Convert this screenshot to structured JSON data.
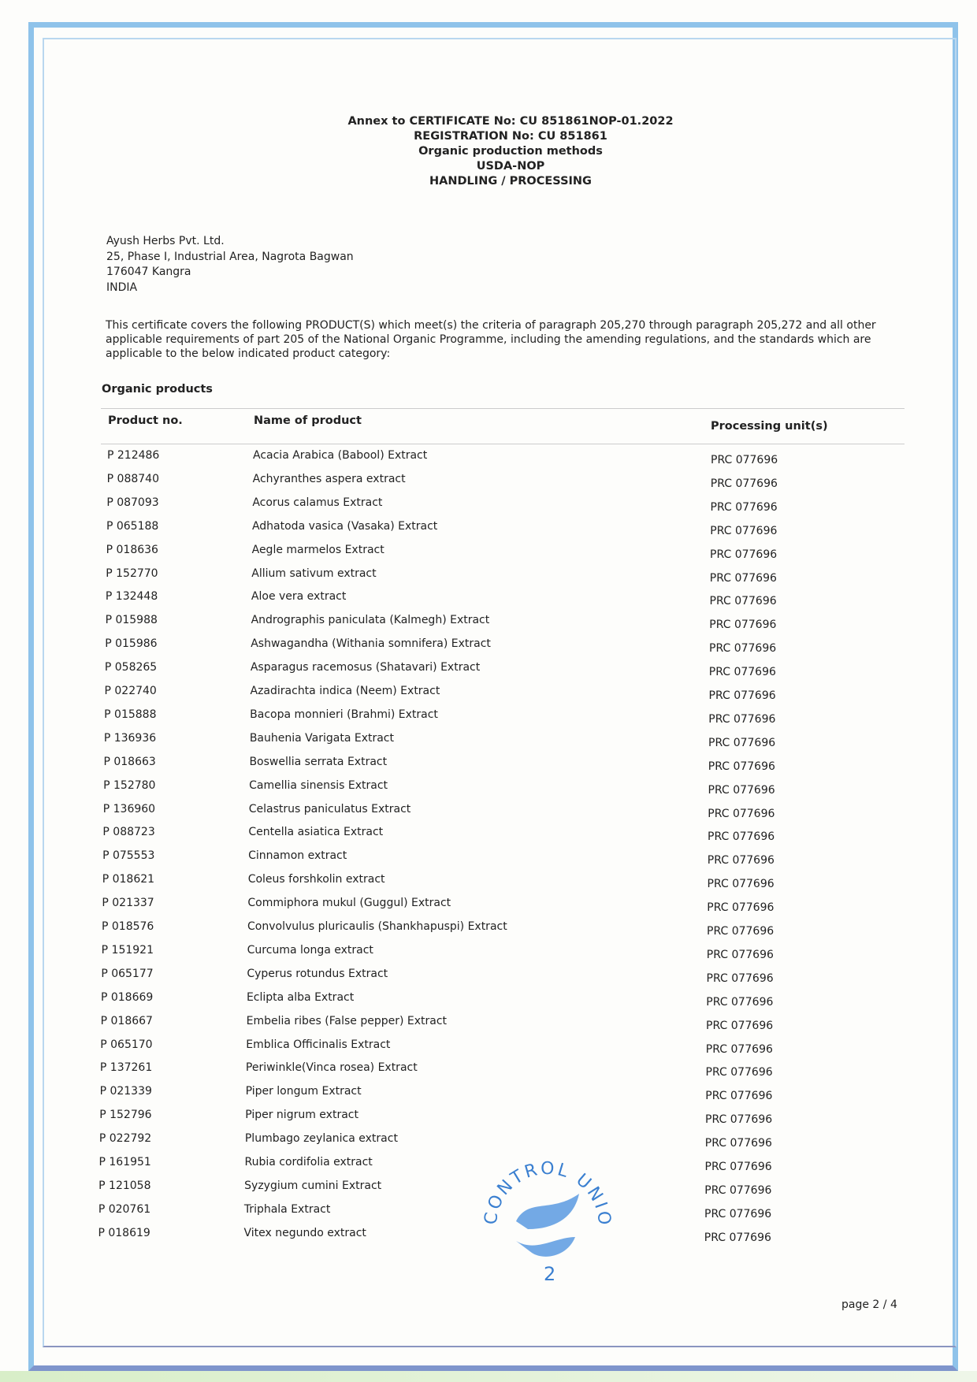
{
  "header": {
    "lines": [
      "Annex to CERTIFICATE No: CU 851861NOP-01.2022",
      "REGISTRATION No: CU 851861",
      "Organic production methods",
      "USDA-NOP",
      "HANDLING / PROCESSING"
    ]
  },
  "address": [
    "Ayush Herbs Pvt. Ltd.",
    "25, Phase I, Industrial Area, Nagrota Bagwan",
    "176047 Kangra",
    "INDIA"
  ],
  "intro": "This certificate covers the following PRODUCT(S) which meet(s) the criteria of paragraph 205,270 through paragraph 205,272 and all other applicable requirements of part 205 of the National Organic Programme, including the amending regulations, and the standards which are applicable to the below indicated product category:",
  "section_title": "Organic products",
  "table": {
    "headers": [
      "Product no.",
      "Name of product",
      "Processing unit(s)"
    ],
    "rows": [
      [
        "P 212486",
        "Acacia Arabica (Babool) Extract",
        "PRC 077696"
      ],
      [
        "P 088740",
        "Achyranthes aspera extract",
        "PRC 077696"
      ],
      [
        "P 087093",
        "Acorus calamus Extract",
        "PRC 077696"
      ],
      [
        "P 065188",
        "Adhatoda vasica (Vasaka) Extract",
        "PRC 077696"
      ],
      [
        "P 018636",
        "Aegle marmelos Extract",
        "PRC 077696"
      ],
      [
        "P 152770",
        "Allium sativum extract",
        "PRC 077696"
      ],
      [
        "P 132448",
        "Aloe vera extract",
        "PRC 077696"
      ],
      [
        "P 015988",
        "Andrographis paniculata (Kalmegh) Extract",
        "PRC 077696"
      ],
      [
        "P 015986",
        "Ashwagandha (Withania somnifera) Extract",
        "PRC 077696"
      ],
      [
        "P 058265",
        "Asparagus racemosus (Shatavari) Extract",
        "PRC 077696"
      ],
      [
        "P 022740",
        "Azadirachta indica (Neem) Extract",
        "PRC 077696"
      ],
      [
        "P 015888",
        "Bacopa monnieri (Brahmi) Extract",
        "PRC 077696"
      ],
      [
        "P 136936",
        "Bauhenia Varigata Extract",
        "PRC 077696"
      ],
      [
        "P 018663",
        "Boswellia serrata Extract",
        "PRC 077696"
      ],
      [
        "P 152780",
        "Camellia sinensis Extract",
        "PRC 077696"
      ],
      [
        "P 136960",
        "Celastrus paniculatus Extract",
        "PRC 077696"
      ],
      [
        "P 088723",
        "Centella asiatica Extract",
        "PRC 077696"
      ],
      [
        "P 075553",
        "Cinnamon extract",
        "PRC 077696"
      ],
      [
        "P 018621",
        "Coleus forshkolin extract",
        "PRC 077696"
      ],
      [
        "P 021337",
        "Commiphora mukul (Guggul) Extract",
        "PRC 077696"
      ],
      [
        "P 018576",
        "Convolvulus pluricaulis (Shankhapuspi) Extract",
        "PRC 077696"
      ],
      [
        "P 151921",
        "Curcuma longa extract",
        "PRC 077696"
      ],
      [
        "P 065177",
        "Cyperus rotundus Extract",
        "PRC 077696"
      ],
      [
        "P 018669",
        "Eclipta alba Extract",
        "PRC 077696"
      ],
      [
        "P 018667",
        "Embelia ribes (False pepper) Extract",
        "PRC 077696"
      ],
      [
        "P 065170",
        "Emblica Officinalis Extract",
        "PRC 077696"
      ],
      [
        "P 137261",
        "Periwinkle(Vinca rosea) Extract",
        "PRC 077696"
      ],
      [
        "P 021339",
        "Piper longum Extract",
        "PRC 077696"
      ],
      [
        "P 152796",
        "Piper nigrum extract",
        "PRC 077696"
      ],
      [
        "P 022792",
        "Plumbago zeylanica extract",
        "PRC 077696"
      ],
      [
        "P 161951",
        "Rubia cordifolia extract",
        "PRC 077696"
      ],
      [
        "P 121058",
        "Syzygium cumini Extract",
        "PRC 077696"
      ],
      [
        "P 020761",
        "Triphala Extract",
        "PRC 077696"
      ],
      [
        "P 018619",
        "Vitex negundo extract",
        "PRC 077696"
      ]
    ]
  },
  "stamp": {
    "text": "CONTROL UNION",
    "number": "2",
    "color": "#3a7fd0"
  },
  "page_number": "page 2 / 4",
  "colors": {
    "frame": "#8fc3ea"
  }
}
